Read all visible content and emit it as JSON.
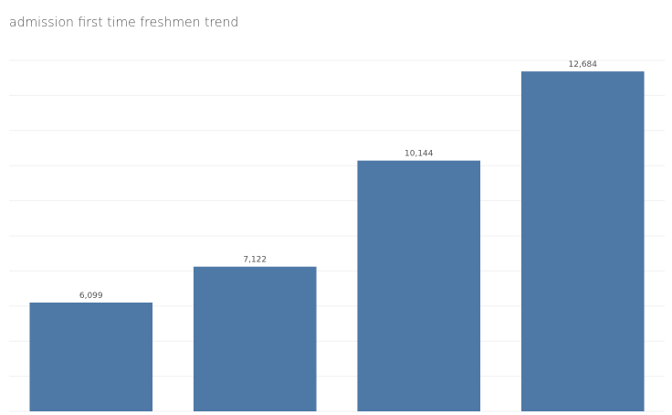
{
  "chart_data": {
    "type": "bar",
    "title": "admission first time freshmen trend",
    "categories": [
      null,
      null,
      null,
      null
    ],
    "values": [
      6099,
      7122,
      10144,
      12684
    ],
    "value_labels": [
      "6,099",
      "7,122",
      "10,144",
      "12,684"
    ],
    "color": "#4e79a7",
    "ylim": [
      3000,
      13000
    ],
    "yticks": [
      3000,
      4000,
      5000,
      6000,
      7000,
      8000,
      9000,
      10000,
      11000,
      12000,
      13000
    ],
    "grid": true
  }
}
